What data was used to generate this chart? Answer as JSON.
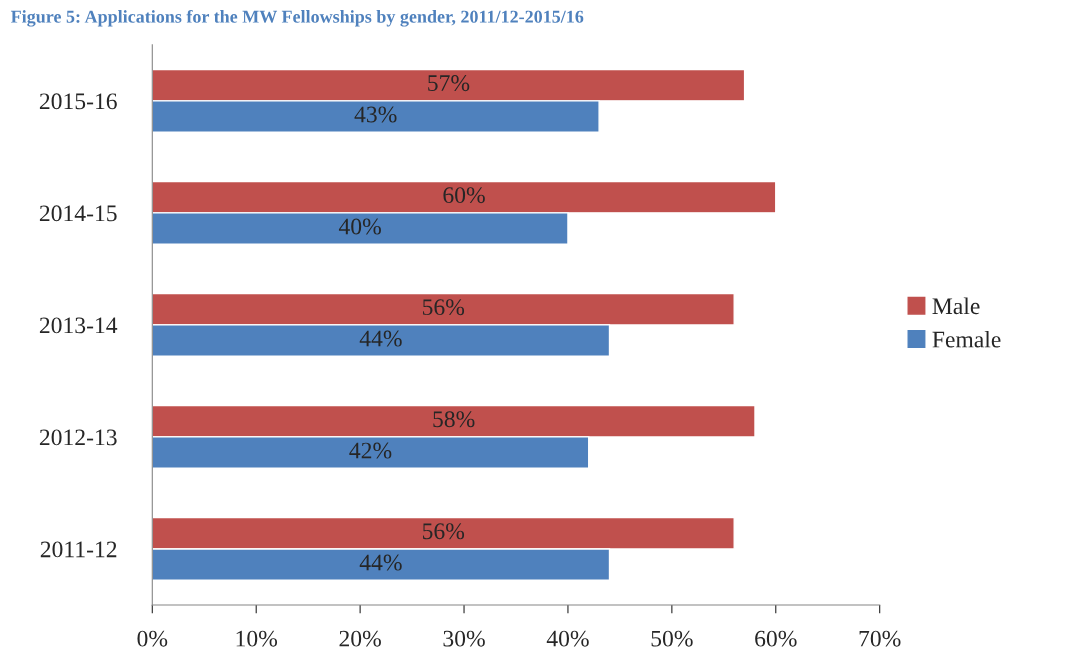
{
  "chart_data": {
    "type": "bar",
    "orientation": "horizontal",
    "title": "Figure 5: Applications for the MW Fellowships by gender, 2011/12-2015/16",
    "categories": [
      "2015-16",
      "2014-15",
      "2013-14",
      "2012-13",
      "2011-12"
    ],
    "series": [
      {
        "name": "Male",
        "color": "#c0504d",
        "values": [
          57,
          60,
          56,
          58,
          56
        ],
        "value_labels": [
          "57%",
          "60%",
          "56%",
          "58%",
          "56%"
        ]
      },
      {
        "name": "Female",
        "color": "#4f81bd",
        "values": [
          43,
          40,
          44,
          42,
          44
        ],
        "value_labels": [
          "43%",
          "40%",
          "44%",
          "42%",
          "44%"
        ]
      }
    ],
    "xlim": [
      0,
      70
    ],
    "xticks": [
      {
        "value": 0,
        "label": "0%"
      },
      {
        "value": 10,
        "label": "10%"
      },
      {
        "value": 20,
        "label": "20%"
      },
      {
        "value": 30,
        "label": "30%"
      },
      {
        "value": 40,
        "label": "40%"
      },
      {
        "value": 50,
        "label": "50%"
      },
      {
        "value": 60,
        "label": "60%"
      },
      {
        "value": 70,
        "label": "70%"
      }
    ],
    "grid": false,
    "legend": "right"
  }
}
